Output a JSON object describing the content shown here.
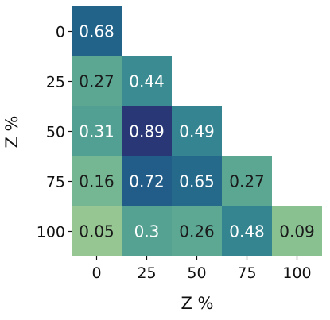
{
  "chart_data": {
    "type": "heatmap",
    "title": "",
    "xlabel": "Z %",
    "ylabel": "Z %",
    "x_categories": [
      "0",
      "25",
      "50",
      "75",
      "100"
    ],
    "y_categories": [
      "0",
      "25",
      "50",
      "75",
      "100"
    ],
    "values": [
      [
        0.68,
        null,
        null,
        null,
        null
      ],
      [
        0.27,
        0.44,
        null,
        null,
        null
      ],
      [
        0.31,
        0.89,
        0.49,
        null,
        null
      ],
      [
        0.16,
        0.72,
        0.65,
        0.27,
        null
      ],
      [
        0.05,
        0.3,
        0.26,
        0.48,
        0.09
      ]
    ],
    "value_labels": [
      [
        "0.68",
        null,
        null,
        null,
        null
      ],
      [
        "0.27",
        "0.44",
        null,
        null,
        null
      ],
      [
        "0.31",
        "0.89",
        "0.49",
        null,
        null
      ],
      [
        "0.16",
        "0.72",
        "0.65",
        "0.27",
        null
      ],
      [
        "0.05",
        "0.3",
        "0.26",
        "0.48",
        "0.09"
      ]
    ],
    "mask": "upper-triangle",
    "colormap": "crest",
    "color_range": [
      0,
      1
    ],
    "colorbar": false,
    "grid": false
  }
}
